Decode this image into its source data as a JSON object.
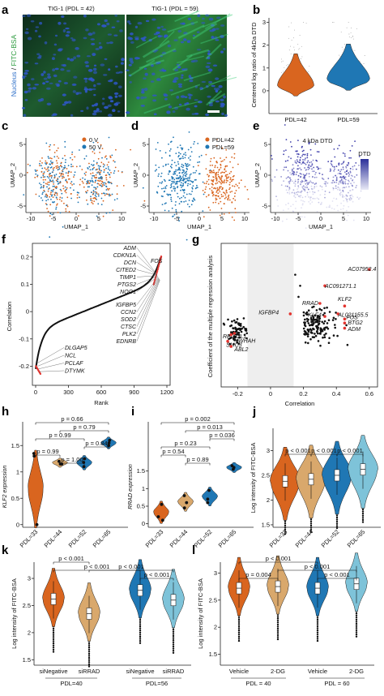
{
  "colors": {
    "orange": "#d9651f",
    "blue": "#1f77b4",
    "tan": "#d9a86c",
    "lightblue": "#7ec3d9",
    "purple": "#4b4fb0",
    "red": "#e3342f",
    "green": "#3fcf7a",
    "nucleus": "#2f57c9"
  },
  "panels": {
    "a": "a",
    "b": "b",
    "c": "c",
    "d": "d",
    "e": "e",
    "f": "f",
    "g": "g",
    "h": "h",
    "i": "i",
    "j": "j",
    "k": "k",
    "l": "l"
  },
  "panel_a": {
    "title_left": "TIG-1 (PDL = 42)",
    "title_right": "TIG-1 (PDL = 59)",
    "ylabel_nucleus": "Nucleus",
    "ylabel_sep": " / ",
    "ylabel_fitc": "FITC-BSA"
  },
  "chart_data": [
    {
      "id": "b",
      "type": "violin",
      "ylabel": "Centered log ratio of 4kDa DTD",
      "categories": [
        "PDL=42",
        "PDL=59"
      ],
      "ylim": [
        -1,
        3.2
      ],
      "yticks": [
        0,
        1,
        2,
        3
      ]
    },
    {
      "id": "c",
      "type": "scatter",
      "xlabel": "UMAP_1",
      "ylabel": "UMAP_2",
      "xticks": [
        -10,
        -5,
        0,
        5,
        10
      ],
      "yticks": [
        -5,
        0,
        5
      ],
      "legend": [
        "0 V",
        "50 V"
      ]
    },
    {
      "id": "d",
      "type": "scatter",
      "xlabel": "UMAP_1",
      "ylabel": "UMAP_2",
      "xticks": [
        -10,
        -5,
        0,
        5,
        10
      ],
      "yticks": [
        -5,
        0,
        5
      ],
      "legend": [
        "PDL=42",
        "PDL=59"
      ]
    },
    {
      "id": "e",
      "type": "scatter",
      "title": "4 kDa DTD",
      "xlabel": "UMAP_1",
      "ylabel": "UMAP_2",
      "xticks": [
        -10,
        -5,
        0,
        5,
        10
      ],
      "yticks": [
        -5,
        0,
        5
      ],
      "colorbar": "DTD"
    },
    {
      "id": "f",
      "type": "line",
      "xlabel": "Rank",
      "ylabel": "Correlation",
      "xticks": [
        0,
        300,
        600,
        900,
        1200
      ],
      "yticks": [
        -0.2,
        -0.1,
        0,
        0.1,
        0.2
      ],
      "ylim": [
        -0.27,
        0.25
      ],
      "xlim": [
        0,
        1200
      ],
      "top_genes": [
        "ADM",
        "CDKN1A",
        "DCN",
        "CITED2",
        "TIMP1",
        "PTGS2",
        "NQO1",
        "IGFBP5",
        "CCN2",
        "SOD2",
        "CTSC",
        "PLK2",
        "EDNRB"
      ],
      "top_gene_extra": "FOS",
      "bottom_genes": [
        "DLGAP5",
        "NCL",
        "PCLAF",
        "DTYMK"
      ]
    },
    {
      "id": "g",
      "type": "scatter",
      "xlabel": "Correlation",
      "ylabel": "Coefficient of the multiple regression analysis",
      "xticks": [
        -0.2,
        0,
        0.2,
        0.4,
        0.6
      ],
      "xlim": [
        -0.3,
        0.65
      ],
      "labels": [
        "AC07952.4",
        "AC091271.1",
        "RRAD",
        "KLF2",
        "IGFBP4",
        "KLF4",
        "AL021155.5",
        "FOS",
        "BTG2",
        "ADM",
        "RPL22L1",
        "YWHAH",
        "SMC3",
        "ABL2"
      ]
    },
    {
      "id": "h",
      "type": "dot",
      "ylabel": "KLF2 expression",
      "categories": [
        "PDL=33",
        "PDL=44",
        "PDL=52",
        "PDL=65"
      ],
      "ylim": [
        -0.05,
        1.95
      ],
      "yticks": [
        0,
        0.5,
        1,
        1.5
      ],
      "values": [
        [
          0,
          1.35,
          1.3
        ],
        [
          1.15,
          1.2,
          1.15
        ],
        [
          1.18,
          1.25,
          1.1
        ],
        [
          1.55,
          1.6,
          1.5
        ]
      ],
      "pvalues": [
        {
          "a": 0,
          "b": 3,
          "p": "p = 0.66"
        },
        {
          "a": 1,
          "b": 3,
          "p": "p = 0.79"
        },
        {
          "a": 0,
          "b": 2,
          "p": "p = 0.99"
        },
        {
          "a": 2,
          "b": 3,
          "p": "p = 0.84"
        },
        {
          "a": 0,
          "b": 1,
          "p": "p = 0.99"
        },
        {
          "a": 1,
          "b": 2,
          "p": "p = 1.00"
        }
      ]
    },
    {
      "id": "i",
      "type": "dot",
      "ylabel": "RRAD expression",
      "categories": [
        "PDL=33",
        "PDL=44",
        "PDL=52",
        "PDL=65"
      ],
      "ylim": [
        -0.1,
        2.9
      ],
      "yticks": [
        0,
        0.5,
        1,
        1.5
      ],
      "values": [
        [
          0.1,
          0.55,
          0.2
        ],
        [
          0.8,
          0.6,
          0.45
        ],
        [
          0.95,
          0.7,
          0.6
        ],
        [
          1.55,
          1.6,
          1.65
        ]
      ],
      "pvalues": [
        {
          "a": 0,
          "b": 3,
          "p": "p = 0.002"
        },
        {
          "a": 1,
          "b": 3,
          "p": "p = 0.013"
        },
        {
          "a": 2,
          "b": 3,
          "p": "p = 0.036"
        },
        {
          "a": 0,
          "b": 2,
          "p": "p = 0.23"
        },
        {
          "a": 0,
          "b": 1,
          "p": "p = 0.54"
        },
        {
          "a": 1,
          "b": 2,
          "p": "p = 0.89"
        }
      ]
    },
    {
      "id": "j",
      "type": "violin",
      "ylabel": "Log intensity of FITC-BSA",
      "categories": [
        "PDL=33",
        "PDL=44",
        "PDL=52",
        "PDL=65"
      ],
      "ylim": [
        1.45,
        3.45
      ],
      "yticks": [
        1.5,
        2.0,
        2.5,
        3.0
      ],
      "medians": [
        2.38,
        2.42,
        2.5,
        2.62
      ],
      "pvalues": [
        {
          "a": 0,
          "b": 1,
          "p": "p < 0.001"
        },
        {
          "a": 1,
          "b": 2,
          "p": "p < 0.001"
        },
        {
          "a": 2,
          "b": 3,
          "p": "p < 0.001"
        }
      ]
    },
    {
      "id": "k",
      "type": "violin",
      "ylabel": "Log intensity of FITC-BSA",
      "categories": [
        "siNegative",
        "siRRAD",
        "siNegative",
        "siRRAD"
      ],
      "groups": [
        "PDL=40",
        "PDL=56"
      ],
      "ylim": [
        1.4,
        3.3
      ],
      "yticks": [
        1.5,
        2.0,
        2.5,
        3.0
      ],
      "medians": [
        2.62,
        2.35,
        2.78,
        2.6
      ],
      "pvalues": [
        {
          "a": 0,
          "b": 1,
          "p": "p < 0.001"
        },
        {
          "a": 0,
          "b": 2,
          "p": "p < 0.001"
        },
        {
          "a": 1,
          "b": 3,
          "p": "p < 0.001"
        },
        {
          "a": 2,
          "b": 3,
          "p": "p < 0.001"
        }
      ]
    },
    {
      "id": "l",
      "type": "violin",
      "ylabel": "Log intensity of FITC-BSA",
      "categories": [
        "Vehicle",
        "2-DG",
        "Vehicle",
        "2-DG"
      ],
      "groups": [
        "PDL = 40",
        "PDL = 60"
      ],
      "ylim": [
        1.3,
        3.2
      ],
      "yticks": [
        1.5,
        2.0,
        2.5,
        3.0
      ],
      "medians": [
        2.72,
        2.75,
        2.72,
        2.8
      ],
      "pvalues": [
        {
          "a": 0,
          "b": 2,
          "p": "p < 0.001"
        },
        {
          "a": 1,
          "b": 3,
          "p": "p < 0.001"
        },
        {
          "a": 0,
          "b": 1,
          "p": "p = 0.004"
        },
        {
          "a": 2,
          "b": 3,
          "p": "p < 0.001"
        }
      ]
    }
  ]
}
